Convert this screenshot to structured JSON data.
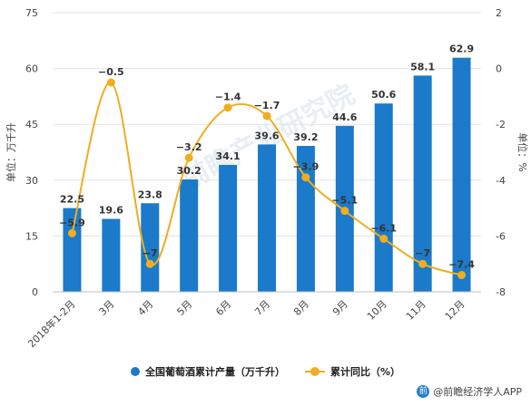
{
  "chart_data": {
    "type": "bar",
    "categories": [
      "2018年1-2月",
      "3月",
      "4月",
      "5月",
      "6月",
      "7月",
      "8月",
      "9月",
      "10月",
      "11月",
      "12月"
    ],
    "series": [
      {
        "name": "全国葡萄酒累计产量（万千升）",
        "type": "bar",
        "axis": "left",
        "color": "#1b7ac9",
        "values": [
          22.5,
          19.6,
          23.8,
          30.2,
          34.1,
          39.6,
          39.2,
          44.6,
          50.6,
          58.1,
          62.9
        ]
      },
      {
        "name": "累计同比（%）",
        "type": "line",
        "axis": "right",
        "color": "#f0ad1f",
        "values": [
          -5.9,
          -0.5,
          -7,
          -3.2,
          -1.4,
          -1.7,
          -3.9,
          -5.1,
          -6.1,
          -7,
          -7.4
        ]
      }
    ],
    "ylabel_left": "单位：万千升",
    "ylabel_right": "单位：%",
    "ylim_left": [
      0,
      75
    ],
    "yticks_left": [
      "0",
      "15",
      "30",
      "45",
      "60",
      "75"
    ],
    "ylim_right": [
      -8,
      2
    ],
    "yticks_right": [
      "-8",
      "-6",
      "-4",
      "-2",
      "0",
      "2"
    ],
    "grid": true,
    "legend_position": "bottom"
  },
  "watermark": "前瞻产业研究院",
  "source": {
    "icon": "qianzhan-logo-icon",
    "text": "@前瞻经济学人APP"
  }
}
